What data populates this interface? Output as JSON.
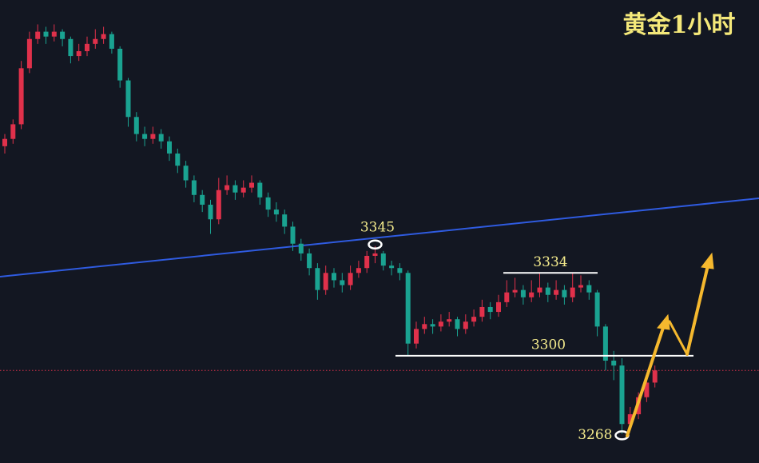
{
  "chart_data": {
    "type": "candlestick",
    "title": "黄金1小时",
    "ylim": [
      3256,
      3446
    ],
    "up_color": "#e0314b",
    "down_color": "#1aa391",
    "open": [
      3386,
      3389,
      3395,
      3418,
      3430,
      3433,
      3431,
      3433,
      3430,
      3423,
      3425,
      3428,
      3430,
      3432,
      3426,
      3413,
      3398,
      3391,
      3389,
      3391,
      3388,
      3383,
      3378,
      3372,
      3366,
      3362,
      3356,
      3368,
      3370,
      3367,
      3369,
      3371,
      3365,
      3360,
      3358,
      3353,
      3346,
      3342,
      3336,
      3327,
      3334,
      3331,
      3329,
      3334,
      3336,
      3341,
      3342,
      3337,
      3336,
      3334,
      3305,
      3311,
      3313,
      3312,
      3314,
      3315,
      3311,
      3314,
      3316,
      3320,
      3318,
      3322,
      3326,
      3327,
      3324,
      3326,
      3328,
      3325,
      3327,
      3324,
      3328,
      3329,
      3326,
      3312,
      3298,
      3296,
      3272,
      3276,
      3283,
      3289
    ],
    "high": [
      3391,
      3397,
      3421,
      3433,
      3436,
      3435,
      3436,
      3434,
      3431,
      3428,
      3431,
      3434,
      3435,
      3433,
      3427,
      3414,
      3400,
      3394,
      3394,
      3393,
      3390,
      3385,
      3380,
      3374,
      3368,
      3364,
      3373,
      3374,
      3372,
      3372,
      3374,
      3372,
      3367,
      3363,
      3360,
      3355,
      3348,
      3344,
      3338,
      3337,
      3336,
      3334,
      3337,
      3339,
      3343,
      3345,
      3343,
      3339,
      3338,
      3335,
      3314,
      3316,
      3315,
      3317,
      3318,
      3316,
      3317,
      3319,
      3323,
      3322,
      3325,
      3331,
      3332,
      3329,
      3331,
      3334,
      3330,
      3331,
      3329,
      3334,
      3333,
      3331,
      3327,
      3313,
      3302,
      3299,
      3279,
      3285,
      3291,
      3296
    ],
    "low": [
      3383,
      3387,
      3393,
      3416,
      3428,
      3428,
      3429,
      3427,
      3420,
      3421,
      3423,
      3426,
      3428,
      3424,
      3410,
      3394,
      3388,
      3386,
      3387,
      3385,
      3380,
      3375,
      3369,
      3363,
      3359,
      3350,
      3354,
      3366,
      3364,
      3365,
      3367,
      3362,
      3357,
      3355,
      3350,
      3343,
      3339,
      3333,
      3323,
      3325,
      3328,
      3326,
      3327,
      3332,
      3334,
      3338,
      3335,
      3333,
      3331,
      3300,
      3303,
      3309,
      3309,
      3310,
      3312,
      3308,
      3309,
      3312,
      3314,
      3315,
      3316,
      3320,
      3324,
      3321,
      3322,
      3324,
      3322,
      3323,
      3321,
      3322,
      3326,
      3323,
      3308,
      3294,
      3290,
      3268,
      3270,
      3274,
      3281,
      3287
    ],
    "close": [
      3389,
      3395,
      3418,
      3430,
      3433,
      3431,
      3433,
      3430,
      3423,
      3425,
      3428,
      3430,
      3432,
      3426,
      3413,
      3398,
      3391,
      3389,
      3391,
      3388,
      3383,
      3378,
      3372,
      3366,
      3362,
      3356,
      3368,
      3370,
      3367,
      3369,
      3371,
      3365,
      3360,
      3358,
      3353,
      3346,
      3342,
      3336,
      3327,
      3334,
      3331,
      3329,
      3334,
      3336,
      3341,
      3342,
      3337,
      3336,
      3334,
      3305,
      3311,
      3313,
      3312,
      3314,
      3315,
      3311,
      3314,
      3316,
      3320,
      3318,
      3322,
      3326,
      3327,
      3324,
      3326,
      3328,
      3325,
      3327,
      3324,
      3328,
      3329,
      3326,
      3312,
      3298,
      3296,
      3272,
      3276,
      3283,
      3289,
      3294
    ],
    "levels": [
      3334,
      3300
    ],
    "marked_points": [
      3345,
      3268
    ]
  }
}
